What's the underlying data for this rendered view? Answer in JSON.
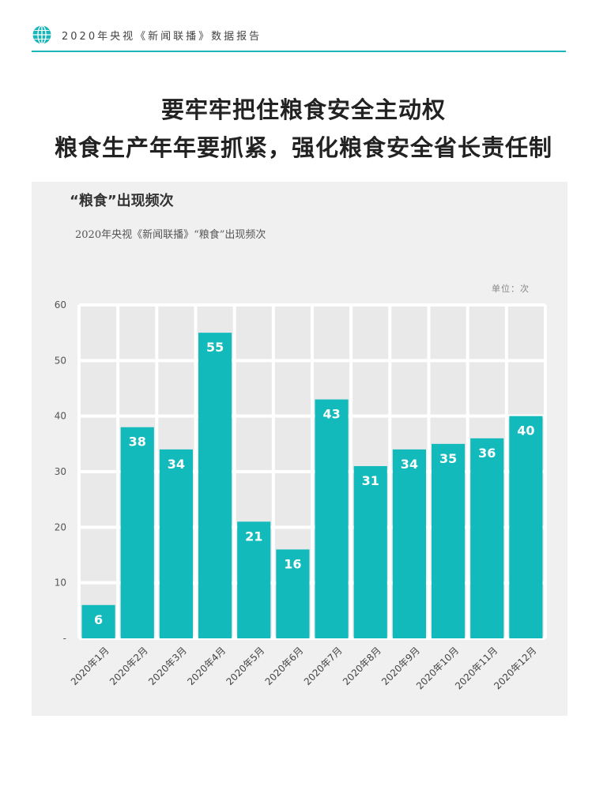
{
  "header": {
    "text": "2020年央视《新闻联播》数据报告",
    "icon": "globe-icon"
  },
  "title": {
    "line1": "要牢牢把住粮食安全主动权",
    "line2": "粮食生产年年要抓紧，强化粮食安全省长责任制"
  },
  "colors": {
    "accent": "#1ab5b8",
    "bar": "#13babc",
    "panel": "#f0f0f0"
  },
  "chart_data": {
    "type": "bar",
    "title": "“粮食”出现频次",
    "subtitle": "2020年央视《新闻联播》“粮食”出现频次",
    "unit": "单位：次",
    "categories": [
      "2020年1月",
      "2020年2月",
      "2020年3月",
      "2020年4月",
      "2020年5月",
      "2020年6月",
      "2020年7月",
      "2020年8月",
      "2020年9月",
      "2020年10月",
      "2020年11月",
      "2020年12月"
    ],
    "values": [
      6,
      38,
      34,
      55,
      21,
      16,
      43,
      31,
      34,
      35,
      36,
      40
    ],
    "ylim": [
      0,
      60
    ],
    "yticks": [
      0,
      10,
      20,
      30,
      40,
      50,
      60
    ],
    "ytick_labels": [
      "-",
      "10",
      "20",
      "30",
      "40",
      "50",
      "60"
    ],
    "grid": true,
    "data_labels": true
  }
}
